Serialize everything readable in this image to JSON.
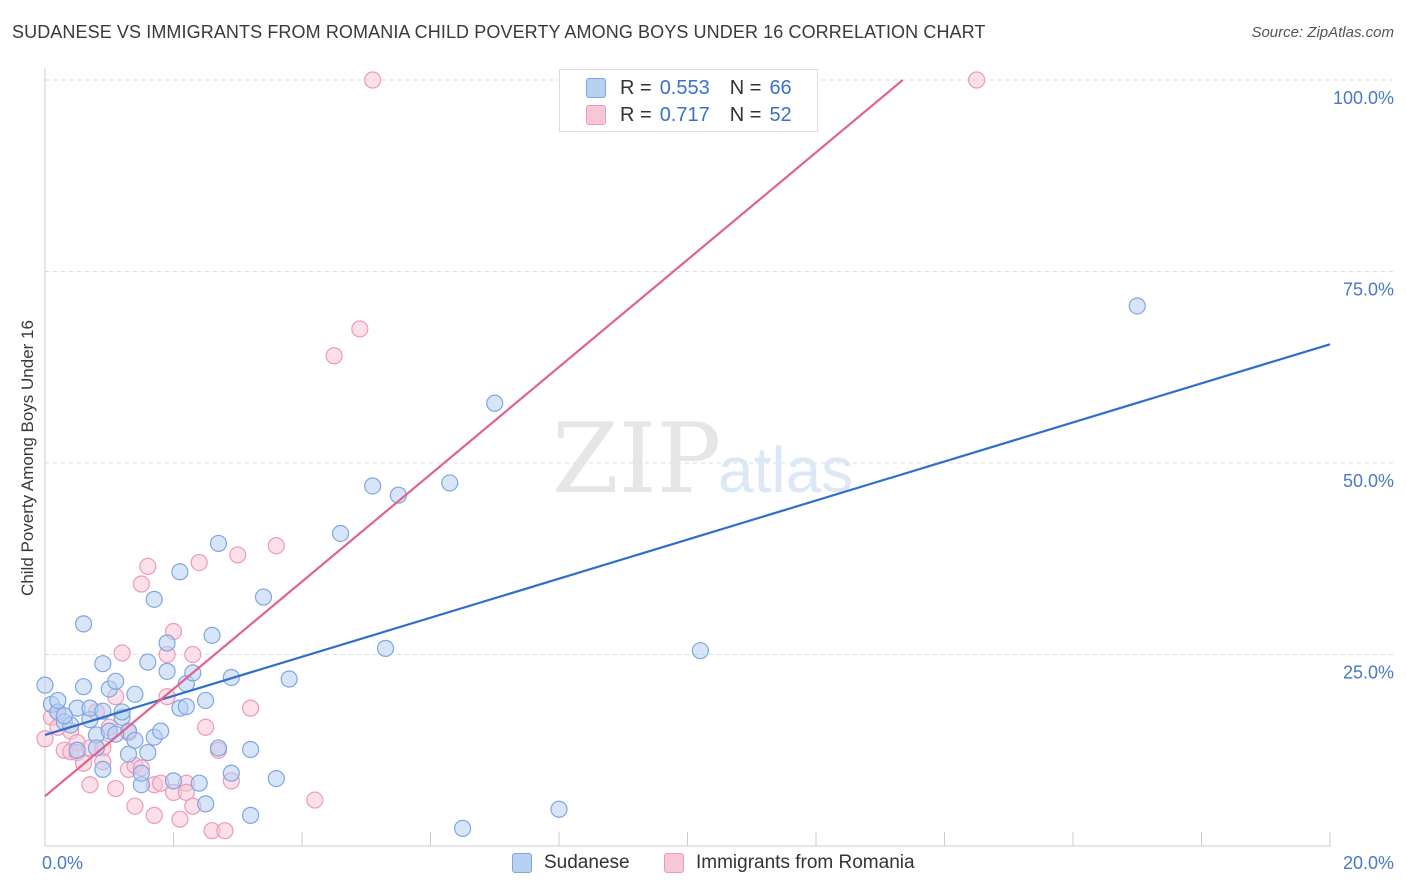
{
  "title": "SUDANESE VS IMMIGRANTS FROM ROMANIA CHILD POVERTY AMONG BOYS UNDER 16 CORRELATION CHART",
  "source": "Source: ZipAtlas.com",
  "watermark": {
    "zip": "ZIP",
    "atlas": "atlas"
  },
  "colors": {
    "sudanese_fill": "#b8d0f2",
    "sudanese_stroke": "#7fa7df",
    "sudanese_line": "#2f6fcc",
    "romania_fill": "#f8c7d7",
    "romania_stroke": "#ee9ab6",
    "romania_line": "#e0628f",
    "tick_text": "#4a7ac7",
    "grid": "#dcdcdc"
  },
  "legend": {
    "rows": [
      {
        "r_label": "R =",
        "r_value": "0.553",
        "n_label": "N =",
        "n_value": "66"
      },
      {
        "r_label": "R =",
        "r_value": "0.717",
        "n_label": "N =",
        "n_value": "52"
      }
    ]
  },
  "bottom_legend": {
    "sudanese": "Sudanese",
    "romania": "Immigrants from Romania"
  },
  "chart_data": {
    "type": "scatter",
    "title": "SUDANESE VS IMMIGRANTS FROM ROMANIA CHILD POVERTY AMONG BOYS UNDER 16 CORRELATION CHART",
    "xlabel": "",
    "ylabel": "Child Poverty Among Boys Under 16",
    "xlim": [
      0,
      20
    ],
    "ylim": [
      0,
      100
    ],
    "x_ticks": [
      0,
      20
    ],
    "x_tick_labels": [
      "0.0%",
      "20.0%"
    ],
    "y_ticks": [
      25,
      50,
      75,
      100
    ],
    "y_tick_labels": [
      "25.0%",
      "50.0%",
      "75.0%",
      "100.0%"
    ],
    "grid": true,
    "series": [
      {
        "name": "Sudanese",
        "R": 0.553,
        "N": 66,
        "trend": {
          "x0": 0,
          "y0": 14.5,
          "x1": 20,
          "y1": 65.5
        },
        "points": [
          [
            0.0,
            21.0
          ],
          [
            0.1,
            18.5
          ],
          [
            0.2,
            17.5
          ],
          [
            0.3,
            16.2
          ],
          [
            0.2,
            19.0
          ],
          [
            0.4,
            15.8
          ],
          [
            0.5,
            18.0
          ],
          [
            0.6,
            20.8
          ],
          [
            0.6,
            29.0
          ],
          [
            0.7,
            16.5
          ],
          [
            0.7,
            18.0
          ],
          [
            0.8,
            14.5
          ],
          [
            0.8,
            12.8
          ],
          [
            0.9,
            10.0
          ],
          [
            0.9,
            23.8
          ],
          [
            1.0,
            15.0
          ],
          [
            1.0,
            20.5
          ],
          [
            1.1,
            21.5
          ],
          [
            1.2,
            16.8
          ],
          [
            1.2,
            17.5
          ],
          [
            1.3,
            15.0
          ],
          [
            1.3,
            12.0
          ],
          [
            1.4,
            19.8
          ],
          [
            1.4,
            13.8
          ],
          [
            1.5,
            8.0
          ],
          [
            1.5,
            9.5
          ],
          [
            1.6,
            24.0
          ],
          [
            1.6,
            12.2
          ],
          [
            1.7,
            14.2
          ],
          [
            1.7,
            32.2
          ],
          [
            1.8,
            15.0
          ],
          [
            1.9,
            26.5
          ],
          [
            1.9,
            22.8
          ],
          [
            2.0,
            8.5
          ],
          [
            2.1,
            35.8
          ],
          [
            2.1,
            18.0
          ],
          [
            2.2,
            21.2
          ],
          [
            2.2,
            18.2
          ],
          [
            2.3,
            22.6
          ],
          [
            2.4,
            8.2
          ],
          [
            2.5,
            19.0
          ],
          [
            2.5,
            5.5
          ],
          [
            2.6,
            27.5
          ],
          [
            2.7,
            39.5
          ],
          [
            2.7,
            12.8
          ],
          [
            2.9,
            22.0
          ],
          [
            2.9,
            9.5
          ],
          [
            3.2,
            4.0
          ],
          [
            3.2,
            12.6
          ],
          [
            3.4,
            32.5
          ],
          [
            3.6,
            8.8
          ],
          [
            3.8,
            21.8
          ],
          [
            4.6,
            40.8
          ],
          [
            5.1,
            47.0
          ],
          [
            5.5,
            45.8
          ],
          [
            5.3,
            25.8
          ],
          [
            6.3,
            47.4
          ],
          [
            6.5,
            2.3
          ],
          [
            7.0,
            57.8
          ],
          [
            8.0,
            4.8
          ],
          [
            10.2,
            25.5
          ],
          [
            17.0,
            70.5
          ],
          [
            0.3,
            17.0
          ],
          [
            1.1,
            14.6
          ],
          [
            0.5,
            12.5
          ],
          [
            0.9,
            17.6
          ]
        ]
      },
      {
        "name": "Immigrants from Romania",
        "R": 0.717,
        "N": 52,
        "trend": {
          "x0": 0,
          "y0": 6.5,
          "x1": 13.35,
          "y1": 100.0
        },
        "points": [
          [
            0.0,
            14.0
          ],
          [
            0.1,
            16.8
          ],
          [
            0.2,
            17.5
          ],
          [
            0.3,
            12.5
          ],
          [
            0.4,
            15.0
          ],
          [
            0.4,
            12.3
          ],
          [
            0.5,
            13.5
          ],
          [
            0.5,
            12.2
          ],
          [
            0.6,
            10.8
          ],
          [
            0.7,
            12.8
          ],
          [
            0.7,
            8.0
          ],
          [
            0.8,
            17.5
          ],
          [
            0.9,
            12.8
          ],
          [
            0.9,
            11.0
          ],
          [
            1.0,
            15.5
          ],
          [
            1.1,
            19.5
          ],
          [
            1.1,
            7.5
          ],
          [
            1.2,
            25.2
          ],
          [
            1.3,
            14.8
          ],
          [
            1.3,
            10.0
          ],
          [
            1.4,
            10.5
          ],
          [
            1.4,
            5.2
          ],
          [
            1.5,
            10.2
          ],
          [
            1.5,
            34.2
          ],
          [
            1.6,
            36.5
          ],
          [
            1.7,
            4.0
          ],
          [
            1.7,
            8.0
          ],
          [
            1.8,
            8.2
          ],
          [
            1.9,
            25.0
          ],
          [
            1.9,
            19.5
          ],
          [
            2.0,
            7.0
          ],
          [
            2.0,
            28.0
          ],
          [
            2.1,
            3.5
          ],
          [
            2.2,
            8.2
          ],
          [
            2.2,
            7.0
          ],
          [
            2.3,
            5.2
          ],
          [
            2.3,
            25.0
          ],
          [
            2.4,
            37.0
          ],
          [
            2.5,
            15.5
          ],
          [
            2.6,
            2.0
          ],
          [
            2.7,
            12.5
          ],
          [
            2.8,
            2.0
          ],
          [
            2.9,
            8.5
          ],
          [
            3.0,
            38.0
          ],
          [
            3.2,
            18.0
          ],
          [
            3.6,
            39.2
          ],
          [
            4.2,
            6.0
          ],
          [
            4.5,
            64.0
          ],
          [
            4.9,
            67.5
          ],
          [
            5.1,
            100.0
          ],
          [
            14.5,
            100.0
          ],
          [
            0.2,
            15.5
          ]
        ]
      }
    ]
  }
}
